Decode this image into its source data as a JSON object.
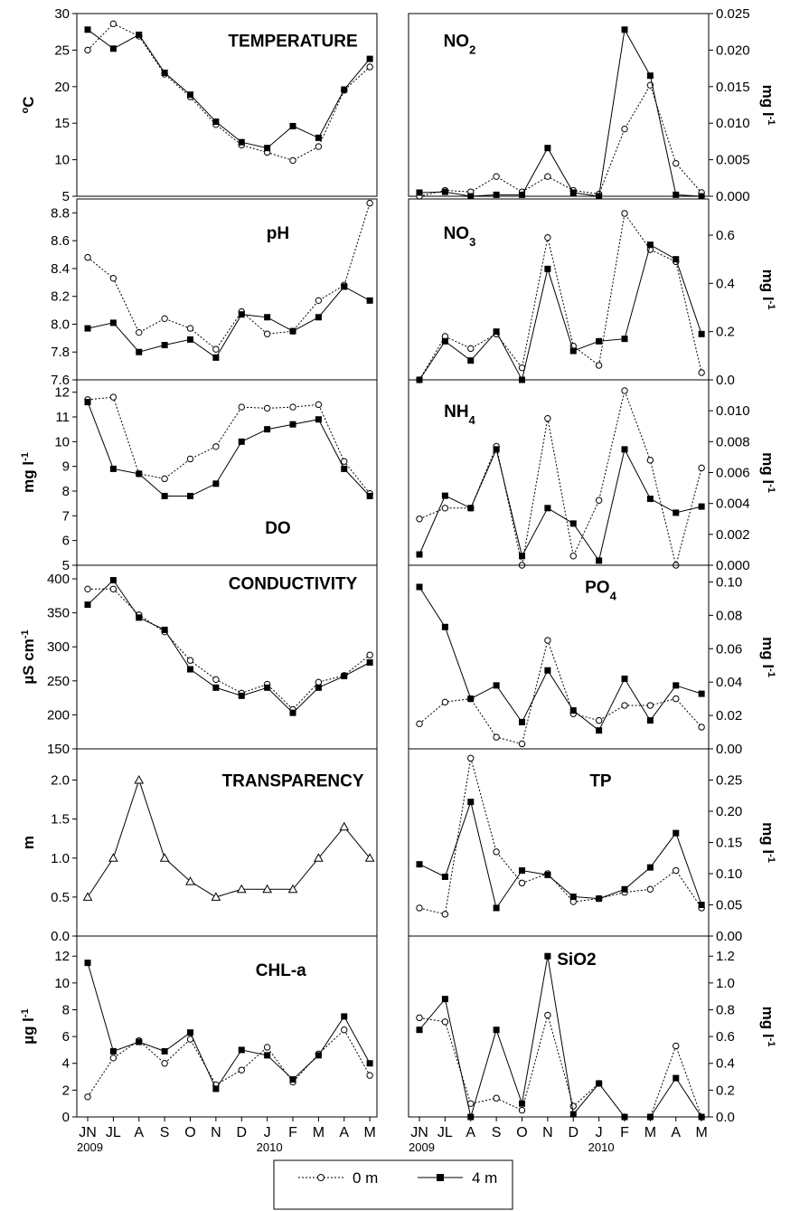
{
  "legend": {
    "series0": "0 m",
    "series1": "4 m",
    "series2": ""
  },
  "x_axis": {
    "tick_labels": [
      "JN",
      "JL",
      "A",
      "S",
      "O",
      "N",
      "D",
      "J",
      "F",
      "M",
      "A",
      "M"
    ],
    "year_labels": [
      {
        "index": 0,
        "text": "2009"
      },
      {
        "index": 7,
        "text": "2010"
      }
    ]
  },
  "chart_data": [
    {
      "type": "line",
      "title": "TEMPERATURE",
      "ylabel": "oC",
      "ylim": [
        5,
        30
      ],
      "yticks": [
        5,
        10,
        15,
        20,
        25,
        30
      ],
      "axis_side": "left",
      "categories": [
        "JN",
        "JL",
        "A",
        "S",
        "O",
        "N",
        "D",
        "J",
        "F",
        "M",
        "A",
        "M"
      ],
      "series": [
        {
          "name": "0 m",
          "values": [
            25.0,
            28.6,
            26.9,
            21.7,
            18.6,
            14.8,
            12.0,
            11.0,
            9.9,
            11.8,
            19.5,
            22.7
          ],
          "style": "open"
        },
        {
          "name": "4 m",
          "values": [
            27.8,
            25.2,
            27.1,
            21.9,
            18.9,
            15.2,
            12.4,
            11.6,
            14.6,
            13.0,
            19.6,
            23.8
          ],
          "style": "filled"
        }
      ]
    },
    {
      "type": "line",
      "title": "pH",
      "ylabel": "",
      "ylim": [
        7.6,
        8.9
      ],
      "yticks": [
        7.6,
        7.8,
        8.0,
        8.2,
        8.4,
        8.6,
        8.8
      ],
      "tick_decimals": 1,
      "axis_side": "left",
      "categories": [
        "JN",
        "JL",
        "A",
        "S",
        "O",
        "N",
        "D",
        "J",
        "F",
        "M",
        "A",
        "M"
      ],
      "series": [
        {
          "name": "0 m",
          "values": [
            8.48,
            8.33,
            7.94,
            8.04,
            7.97,
            7.82,
            8.09,
            7.93,
            7.95,
            8.17,
            8.28,
            8.87
          ],
          "style": "open"
        },
        {
          "name": "4 m",
          "values": [
            7.97,
            8.01,
            7.8,
            7.85,
            7.89,
            7.76,
            8.07,
            8.05,
            7.95,
            8.05,
            8.27,
            8.17
          ],
          "style": "filled"
        }
      ]
    },
    {
      "type": "line",
      "title": "DO",
      "ylabel": "mg l-1",
      "ylim": [
        5,
        12.5
      ],
      "yticks": [
        5,
        6,
        7,
        8,
        9,
        10,
        11,
        12
      ],
      "axis_side": "left",
      "categories": [
        "JN",
        "JL",
        "A",
        "S",
        "O",
        "N",
        "D",
        "J",
        "F",
        "M",
        "A",
        "M"
      ],
      "series": [
        {
          "name": "0 m",
          "values": [
            11.7,
            11.8,
            8.7,
            8.5,
            9.3,
            9.8,
            11.4,
            11.35,
            11.4,
            11.5,
            9.2,
            7.9
          ],
          "style": "open"
        },
        {
          "name": "4 m",
          "values": [
            11.6,
            8.9,
            8.7,
            7.8,
            7.8,
            8.3,
            10.0,
            10.5,
            10.7,
            10.9,
            8.9,
            7.8
          ],
          "style": "filled"
        }
      ]
    },
    {
      "type": "line",
      "title": "CONDUCTIVITY",
      "ylabel": "µS cm-1",
      "ylim": [
        150,
        420
      ],
      "yticks": [
        150,
        200,
        250,
        300,
        350,
        400
      ],
      "axis_side": "left",
      "categories": [
        "JN",
        "JL",
        "A",
        "S",
        "O",
        "N",
        "D",
        "J",
        "F",
        "M",
        "A",
        "M"
      ],
      "series": [
        {
          "name": "0 m",
          "values": [
            385,
            385,
            347,
            322,
            280,
            252,
            232,
            245,
            208,
            248,
            258,
            288
          ],
          "style": "open"
        },
        {
          "name": "4 m",
          "values": [
            362,
            398,
            343,
            325,
            267,
            240,
            228,
            240,
            203,
            240,
            257,
            277
          ],
          "style": "filled"
        }
      ]
    },
    {
      "type": "line",
      "title": "TRANSPARENCY",
      "ylabel": "m",
      "ylim": [
        0,
        2.4
      ],
      "yticks": [
        0.0,
        0.5,
        1.0,
        1.5,
        2.0
      ],
      "tick_decimals": 1,
      "axis_side": "left",
      "categories": [
        "JN",
        "JL",
        "A",
        "S",
        "O",
        "N",
        "D",
        "J",
        "F",
        "M",
        "A",
        "M"
      ],
      "series": [
        {
          "name": "",
          "values": [
            0.5,
            1.0,
            2.0,
            1.0,
            0.7,
            0.5,
            0.6,
            0.6,
            0.6,
            1.0,
            1.4,
            1.0
          ],
          "style": "triangle"
        }
      ]
    },
    {
      "type": "line",
      "title": "CHL-a",
      "ylabel": "µg l-1",
      "ylim": [
        0,
        13.5
      ],
      "yticks": [
        0,
        2,
        4,
        6,
        8,
        10,
        12
      ],
      "axis_side": "left",
      "categories": [
        "JN",
        "JL",
        "A",
        "S",
        "O",
        "N",
        "D",
        "J",
        "F",
        "M",
        "A",
        "M"
      ],
      "series": [
        {
          "name": "0 m",
          "values": [
            1.5,
            4.4,
            5.7,
            4.0,
            5.8,
            2.4,
            3.5,
            5.2,
            2.6,
            4.7,
            6.5,
            3.1
          ],
          "style": "open"
        },
        {
          "name": "4 m",
          "values": [
            11.5,
            4.9,
            5.6,
            4.9,
            6.3,
            2.1,
            5.0,
            4.6,
            2.8,
            4.6,
            7.5,
            4.0
          ],
          "style": "filled"
        }
      ]
    },
    {
      "type": "line",
      "title": "NO2",
      "ylabel": "mg l-1",
      "ylim": [
        0,
        0.025
      ],
      "yticks": [
        0.0,
        0.005,
        0.01,
        0.015,
        0.02,
        0.025
      ],
      "tick_decimals": 3,
      "axis_side": "right",
      "categories": [
        "JN",
        "JL",
        "A",
        "S",
        "O",
        "N",
        "D",
        "J",
        "F",
        "M",
        "A",
        "M"
      ],
      "series": [
        {
          "name": "0 m",
          "values": [
            0.0,
            0.0008,
            0.0006,
            0.0027,
            0.0006,
            0.0027,
            0.0008,
            0.0003,
            0.0092,
            0.0152,
            0.0045,
            0.0005
          ],
          "style": "open"
        },
        {
          "name": "4 m",
          "values": [
            0.0005,
            0.0006,
            0.0,
            0.0002,
            0.0002,
            0.0066,
            0.0005,
            0.0,
            0.0228,
            0.0165,
            0.0002,
            0.0
          ],
          "style": "filled"
        }
      ]
    },
    {
      "type": "line",
      "title": "NO3",
      "ylabel": "mg l-1",
      "ylim": [
        0,
        0.75
      ],
      "yticks": [
        0.0,
        0.2,
        0.4,
        0.6
      ],
      "tick_decimals": 1,
      "axis_side": "right",
      "categories": [
        "JN",
        "JL",
        "A",
        "S",
        "O",
        "N",
        "D",
        "J",
        "F",
        "M",
        "A",
        "M"
      ],
      "series": [
        {
          "name": "0 m",
          "values": [
            0.0,
            0.18,
            0.13,
            0.19,
            0.05,
            0.59,
            0.14,
            0.06,
            0.69,
            0.54,
            0.49,
            0.03
          ],
          "style": "open"
        },
        {
          "name": "4 m",
          "values": [
            0.0,
            0.16,
            0.08,
            0.2,
            0.0,
            0.46,
            0.12,
            0.16,
            0.17,
            0.56,
            0.5,
            0.19
          ],
          "style": "filled"
        }
      ]
    },
    {
      "type": "line",
      "title": "NH4",
      "ylabel": "mg l-1",
      "ylim": [
        0,
        0.012
      ],
      "yticks": [
        0.0,
        0.002,
        0.004,
        0.006,
        0.008,
        0.01
      ],
      "tick_decimals": 3,
      "axis_side": "right",
      "categories": [
        "JN",
        "JL",
        "A",
        "S",
        "O",
        "N",
        "D",
        "J",
        "F",
        "M",
        "A",
        "M"
      ],
      "series": [
        {
          "name": "0 m",
          "values": [
            0.003,
            0.0037,
            0.0037,
            0.0077,
            0.0,
            0.0095,
            0.0006,
            0.0042,
            0.0113,
            0.0068,
            0.0,
            0.0063
          ],
          "style": "open"
        },
        {
          "name": "4 m",
          "values": [
            0.0007,
            0.0045,
            0.0037,
            0.0075,
            0.0006,
            0.0037,
            0.0027,
            0.0003,
            0.0075,
            0.0043,
            0.0034,
            0.0038
          ],
          "style": "filled"
        }
      ]
    },
    {
      "type": "line",
      "title": "PO4",
      "ylabel": "mg l-1",
      "ylim": [
        0,
        0.11
      ],
      "yticks": [
        0.0,
        0.02,
        0.04,
        0.06,
        0.08,
        0.1
      ],
      "tick_decimals": 2,
      "axis_side": "right",
      "categories": [
        "JN",
        "JL",
        "A",
        "S",
        "O",
        "N",
        "D",
        "J",
        "F",
        "M",
        "A",
        "M"
      ],
      "series": [
        {
          "name": "0 m",
          "values": [
            0.015,
            0.028,
            0.03,
            0.007,
            0.003,
            0.065,
            0.021,
            0.017,
            0.026,
            0.026,
            0.03,
            0.013
          ],
          "style": "open"
        },
        {
          "name": "4 m",
          "values": [
            0.097,
            0.073,
            0.03,
            0.038,
            0.016,
            0.047,
            0.023,
            0.011,
            0.042,
            0.017,
            0.038,
            0.033
          ],
          "style": "filled"
        }
      ]
    },
    {
      "type": "line",
      "title": "TP",
      "ylabel": "mg l-1",
      "ylim": [
        0,
        0.3
      ],
      "yticks": [
        0.0,
        0.05,
        0.1,
        0.15,
        0.2,
        0.25
      ],
      "tick_decimals": 2,
      "axis_side": "right",
      "categories": [
        "JN",
        "JL",
        "A",
        "S",
        "O",
        "N",
        "D",
        "J",
        "F",
        "M",
        "A",
        "M"
      ],
      "series": [
        {
          "name": "0 m",
          "values": [
            0.045,
            0.035,
            0.285,
            0.135,
            0.085,
            0.1,
            0.055,
            0.06,
            0.07,
            0.075,
            0.105,
            0.045
          ],
          "style": "open"
        },
        {
          "name": "4 m",
          "values": [
            0.115,
            0.095,
            0.215,
            0.045,
            0.105,
            0.098,
            0.063,
            0.06,
            0.075,
            0.11,
            0.165,
            0.05
          ],
          "style": "filled"
        }
      ]
    },
    {
      "type": "line",
      "title": "SiO2",
      "ylabel": "mg l-1",
      "ylim": [
        0,
        1.35
      ],
      "yticks": [
        0.0,
        0.2,
        0.4,
        0.6,
        0.8,
        1.0,
        1.2
      ],
      "tick_decimals": 1,
      "axis_side": "right",
      "categories": [
        "JN",
        "JL",
        "A",
        "S",
        "O",
        "N",
        "D",
        "J",
        "F",
        "M",
        "A",
        "M"
      ],
      "series": [
        {
          "name": "0 m",
          "values": [
            0.74,
            0.71,
            0.1,
            0.14,
            0.05,
            0.76,
            0.08,
            0.25,
            0.0,
            0.0,
            0.53,
            0.0
          ],
          "style": "open"
        },
        {
          "name": "4 m",
          "values": [
            0.65,
            0.88,
            0.0,
            0.65,
            0.1,
            1.2,
            0.02,
            0.25,
            0.0,
            0.0,
            0.29,
            0.0
          ],
          "style": "filled"
        }
      ]
    }
  ]
}
